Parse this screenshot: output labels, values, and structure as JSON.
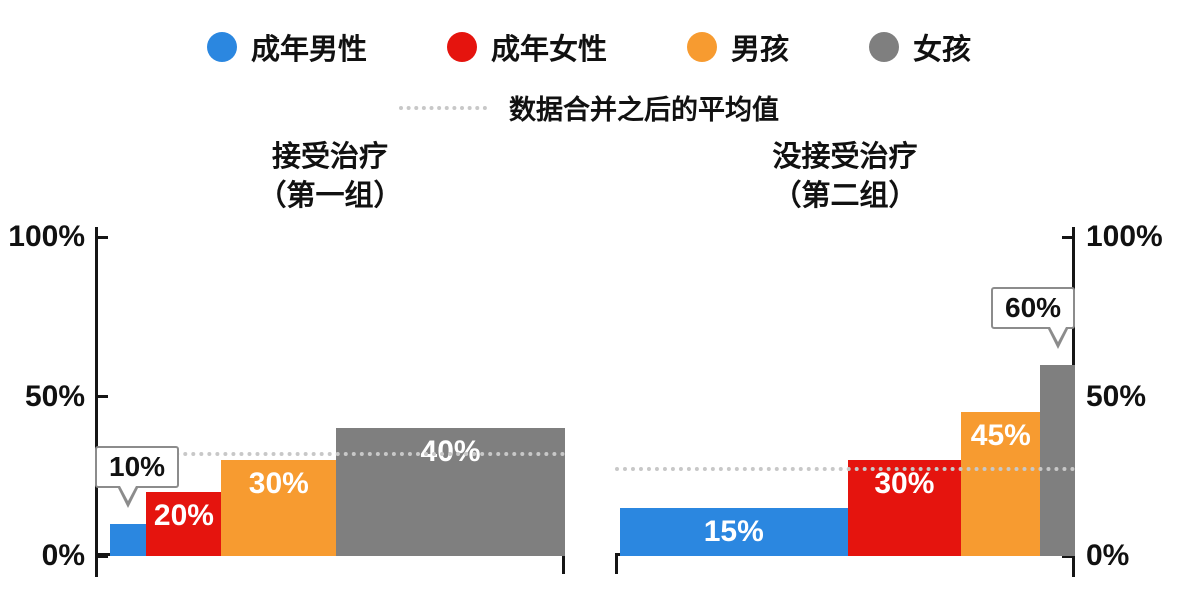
{
  "legend": {
    "items": [
      {
        "label": "成年男性",
        "color": "#2b87e0"
      },
      {
        "label": "成年女性",
        "color": "#e5140e"
      },
      {
        "label": "男孩",
        "color": "#f79b30"
      },
      {
        "label": "女孩",
        "color": "#7f7f7f"
      }
    ],
    "average": {
      "label": "数据合并之后的平均值",
      "line_color": "#c8c8c8"
    }
  },
  "chart_data": [
    {
      "type": "bar",
      "title": "接受治疗",
      "subtitle": "（第一组）",
      "ylim": [
        0,
        100
      ],
      "yaxis_side": "left",
      "grid": false,
      "yticks": [
        {
          "value": 0,
          "label": "0%"
        },
        {
          "value": 50,
          "label": "50%"
        },
        {
          "value": 100,
          "label": "100%"
        }
      ],
      "average_value": 31.9,
      "series": [
        {
          "name": "成年男性",
          "value": 10,
          "label": "10%",
          "width_pct": 8,
          "color": "#2b87e0",
          "label_style": "callout"
        },
        {
          "name": "成年女性",
          "value": 20,
          "label": "20%",
          "width_pct": 16.5,
          "color": "#e5140e",
          "label_style": "inside"
        },
        {
          "name": "男孩",
          "value": 30,
          "label": "30%",
          "width_pct": 25.2,
          "color": "#f79b30",
          "label_style": "inside"
        },
        {
          "name": "女孩",
          "value": 40,
          "label": "40%",
          "width_pct": 50.3,
          "color": "#7f7f7f",
          "label_style": "inside"
        }
      ]
    },
    {
      "type": "bar",
      "title": "没接受治疗",
      "subtitle": "（第二组）",
      "ylim": [
        0,
        100
      ],
      "yaxis_side": "right",
      "grid": false,
      "yticks": [
        {
          "value": 0,
          "label": "0%"
        },
        {
          "value": 50,
          "label": "50%"
        },
        {
          "value": 100,
          "label": "100%"
        }
      ],
      "average_value": 27.4,
      "series": [
        {
          "name": "成年男性",
          "value": 15,
          "label": "15%",
          "width_pct": 50,
          "color": "#2b87e0",
          "label_style": "inside"
        },
        {
          "name": "成年女性",
          "value": 30,
          "label": "30%",
          "width_pct": 25,
          "color": "#e5140e",
          "label_style": "inside"
        },
        {
          "name": "男孩",
          "value": 45,
          "label": "45%",
          "width_pct": 17.4,
          "color": "#f79b30",
          "label_style": "inside"
        },
        {
          "name": "女孩",
          "value": 60,
          "label": "60%",
          "width_pct": 7.6,
          "color": "#7f7f7f",
          "label_style": "callout"
        }
      ]
    }
  ]
}
